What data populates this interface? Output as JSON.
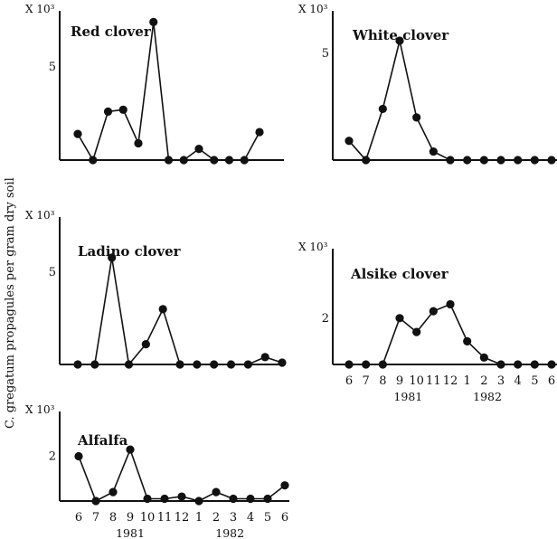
{
  "y_axis_label": "C. gregatum propagules per gram dry soil",
  "chart_data": [
    {
      "type": "line",
      "title": "Red clover",
      "scale_label": "X 10³",
      "ytick_labels": [
        "5"
      ],
      "ytick_values": [
        5
      ],
      "ylim": [
        0,
        8
      ],
      "x": [
        "6",
        "7",
        "8",
        "9",
        "10",
        "11",
        "12",
        "1",
        "2",
        "3",
        "4",
        "5",
        "6"
      ],
      "values": [
        1.4,
        0.0,
        2.6,
        2.7,
        0.9,
        7.4,
        0.0,
        0.0,
        0.6,
        0.0,
        0.0,
        0.0,
        1.5
      ],
      "show_xticks": false,
      "years": []
    },
    {
      "type": "line",
      "title": "White clover",
      "scale_label": "X 10³",
      "ytick_labels": [
        "5"
      ],
      "ytick_values": [
        5
      ],
      "ylim": [
        0,
        7
      ],
      "x": [
        "6",
        "7",
        "8",
        "9",
        "10",
        "11",
        "12",
        "1",
        "2",
        "3",
        "4",
        "5",
        "6"
      ],
      "values": [
        0.9,
        0.0,
        2.4,
        5.6,
        2.0,
        0.4,
        0.0,
        0.0,
        0.0,
        0.0,
        0.0,
        0.0,
        0.0
      ],
      "show_xticks": false,
      "years": []
    },
    {
      "type": "line",
      "title": "Ladino clover",
      "scale_label": "X 10³",
      "ytick_labels": [
        "5"
      ],
      "ytick_values": [
        5
      ],
      "ylim": [
        0,
        8
      ],
      "x": [
        "6",
        "7",
        "8",
        "9",
        "10",
        "11",
        "12",
        "1",
        "2",
        "3",
        "4",
        "5",
        "6"
      ],
      "values": [
        0.0,
        0.0,
        5.8,
        0.0,
        1.1,
        3.0,
        0.0,
        0.0,
        0.0,
        0.0,
        0.0,
        0.4,
        0.1
      ],
      "show_xticks": false,
      "years": []
    },
    {
      "type": "line",
      "title": "Alsike clover",
      "scale_label": "X 10³",
      "ytick_labels": [
        "2"
      ],
      "ytick_values": [
        2
      ],
      "ylim": [
        0,
        5
      ],
      "x": [
        "6",
        "7",
        "8",
        "9",
        "10",
        "11",
        "12",
        "1",
        "2",
        "3",
        "4",
        "5",
        "6"
      ],
      "values": [
        0.0,
        0.0,
        0.0,
        2.0,
        1.4,
        2.3,
        2.6,
        1.0,
        0.3,
        0.0,
        0.0,
        0.0,
        0.0
      ],
      "show_xticks": true,
      "years": [
        {
          "label": "1981",
          "at_index": 3.5
        },
        {
          "label": "1982",
          "at_index": 8.2
        }
      ]
    },
    {
      "type": "line",
      "title": "Alfalfa",
      "scale_label": "X 10³",
      "ytick_labels": [
        "2"
      ],
      "ytick_values": [
        2
      ],
      "ylim": [
        0,
        4
      ],
      "x": [
        "6",
        "7",
        "8",
        "9",
        "10",
        "11",
        "12",
        "1",
        "2",
        "3",
        "4",
        "5",
        "6"
      ],
      "values": [
        2.0,
        0.0,
        0.4,
        2.3,
        0.1,
        0.1,
        0.2,
        0.0,
        0.4,
        0.1,
        0.1,
        0.1,
        0.7
      ],
      "show_xticks": true,
      "years": [
        {
          "label": "1981",
          "at_index": 3.0
        },
        {
          "label": "1982",
          "at_index": 8.8
        }
      ]
    }
  ]
}
